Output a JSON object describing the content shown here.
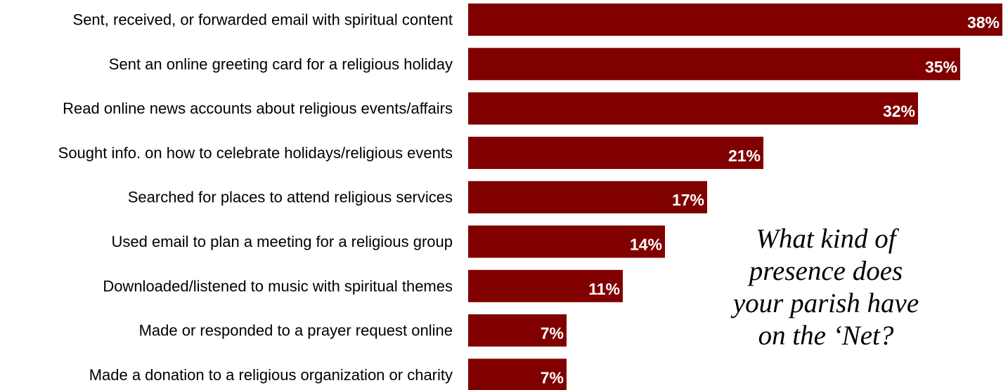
{
  "chart_data": {
    "type": "bar",
    "orientation": "horizontal",
    "categories": [
      "Sent, received, or forwarded email with spiritual content",
      "Sent an online greeting card for a religious holiday",
      "Read online news accounts about religious events/affairs",
      "Sought info. on how to celebrate holidays/religious events",
      "Searched for places to attend religious services",
      "Used email to plan a meeting for a religious group",
      "Downloaded/listened to music with spiritual themes",
      "Made or responded to a prayer request online",
      "Made a donation to a religious organization or charity"
    ],
    "values": [
      38,
      35,
      32,
      21,
      17,
      14,
      11,
      7,
      7
    ],
    "value_labels": [
      "38%",
      "35%",
      "32%",
      "21%",
      "17%",
      "14%",
      "11%",
      "7%",
      "7%"
    ],
    "xlim": [
      0,
      38
    ],
    "bar_color": "#800000",
    "title": "",
    "xlabel": "",
    "ylabel": "",
    "grid": false,
    "legend": "none"
  },
  "callout": {
    "lines": [
      "What kind of",
      "presence does",
      "your parish have",
      "on the ‘Net?"
    ]
  }
}
